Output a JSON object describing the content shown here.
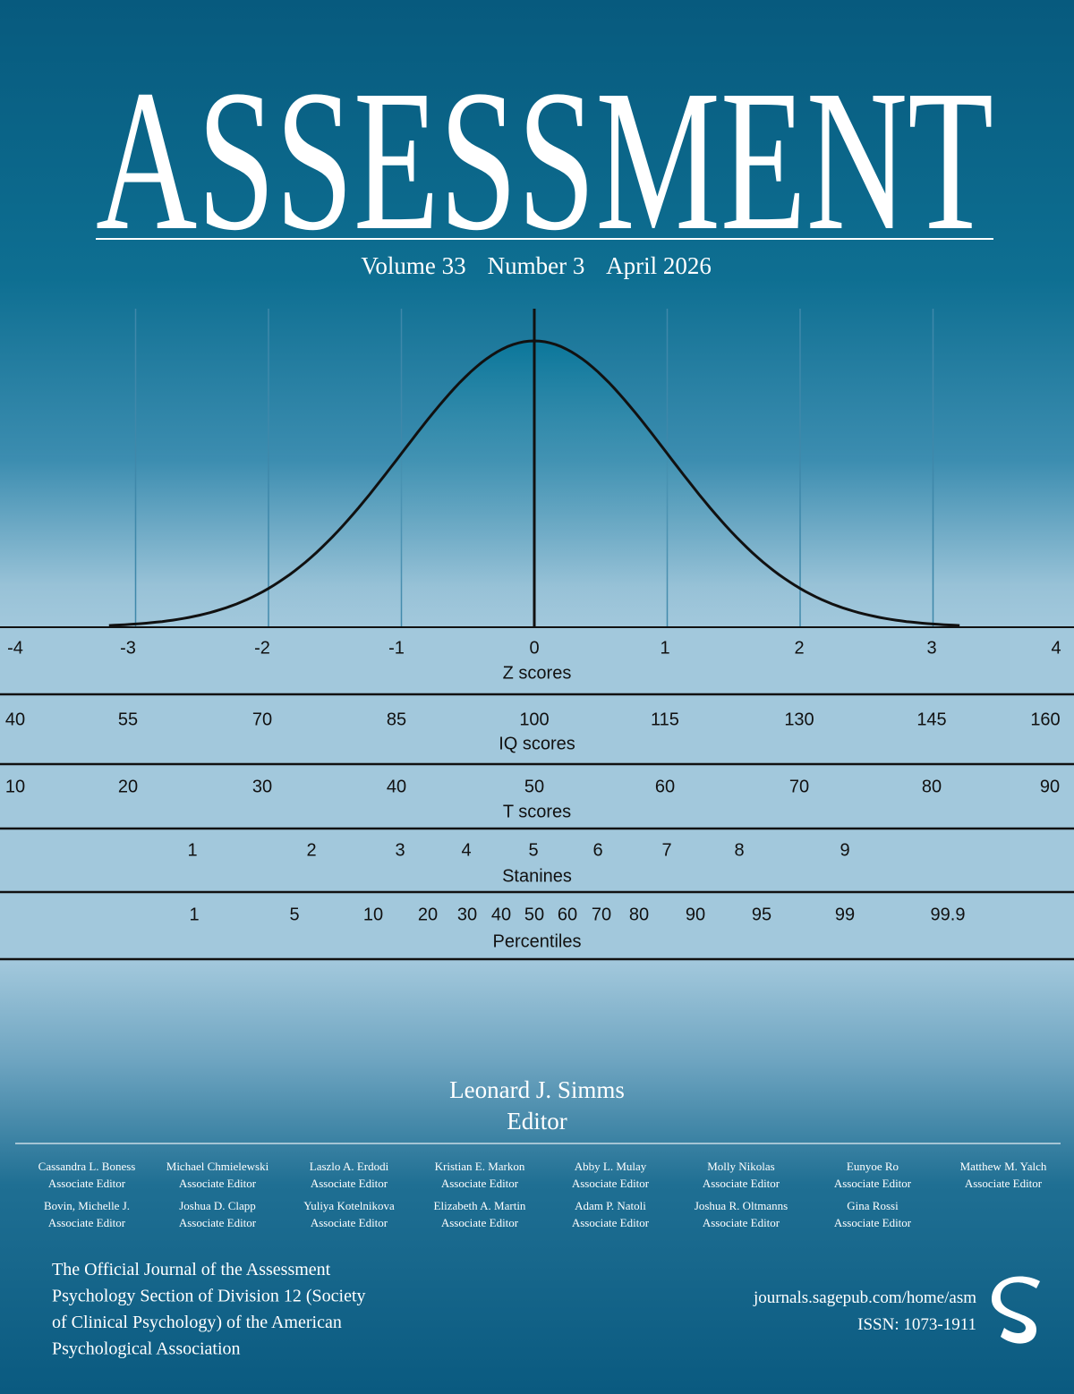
{
  "header": {
    "title": "ASSESSMENT",
    "volume": "Volume 33",
    "number": "Number 3",
    "date": "April 2026"
  },
  "scales": [
    {
      "name": "Z scores",
      "labels": [
        -4,
        -3,
        -2,
        -1,
        0,
        1,
        2,
        3,
        4
      ]
    },
    {
      "name": "IQ scores",
      "labels": [
        40,
        55,
        70,
        85,
        100,
        115,
        130,
        145,
        160
      ]
    },
    {
      "name": "T scores",
      "labels": [
        10,
        20,
        30,
        40,
        50,
        60,
        70,
        80,
        90
      ]
    },
    {
      "name": "Stanines",
      "labels": [
        1,
        2,
        3,
        4,
        5,
        6,
        7,
        8,
        9
      ]
    },
    {
      "name": "Percentiles",
      "labels": [
        1,
        5,
        10,
        20,
        30,
        40,
        50,
        60,
        70,
        80,
        90,
        95,
        99,
        99.9
      ]
    }
  ],
  "editor": {
    "name": "Leonard J. Simms",
    "role": "Editor"
  },
  "associate_editors": [
    {
      "name": "Cassandra L. Boness",
      "role": "Associate Editor"
    },
    {
      "name": "Michael Chmielewski",
      "role": "Associate Editor"
    },
    {
      "name": "Laszlo A. Erdodi",
      "role": "Associate Editor"
    },
    {
      "name": "Kristian E. Markon",
      "role": "Associate Editor"
    },
    {
      "name": "Abby L. Mulay",
      "role": "Associate Editor"
    },
    {
      "name": "Molly Nikolas",
      "role": "Associate Editor"
    },
    {
      "name": "Eunyoe Ro",
      "role": "Associate Editor"
    },
    {
      "name": "Matthew M. Yalch",
      "role": "Associate Editor"
    },
    {
      "name": "Bovin, Michelle J.",
      "role": "Associate Editor"
    },
    {
      "name": "Joshua D. Clapp",
      "role": "Associate Editor"
    },
    {
      "name": "Yuliya Kotelnikova",
      "role": "Associate Editor"
    },
    {
      "name": "Elizabeth A. Martin",
      "role": "Associate Editor"
    },
    {
      "name": "Adam P. Natoli",
      "role": "Associate Editor"
    },
    {
      "name": "Joshua R. Oltmanns",
      "role": "Associate Editor"
    },
    {
      "name": "Gina Rossi",
      "role": "Associate Editor"
    }
  ],
  "footer": {
    "description": [
      "The Official Journal of the Assessment",
      "Psychology Section of Division 12 (Society",
      "of Clinical Psychology) of the American",
      "Psychological Association"
    ],
    "url": "journals.sagepub.com/home/asm",
    "issn": "ISSN: 1073-1911"
  }
}
